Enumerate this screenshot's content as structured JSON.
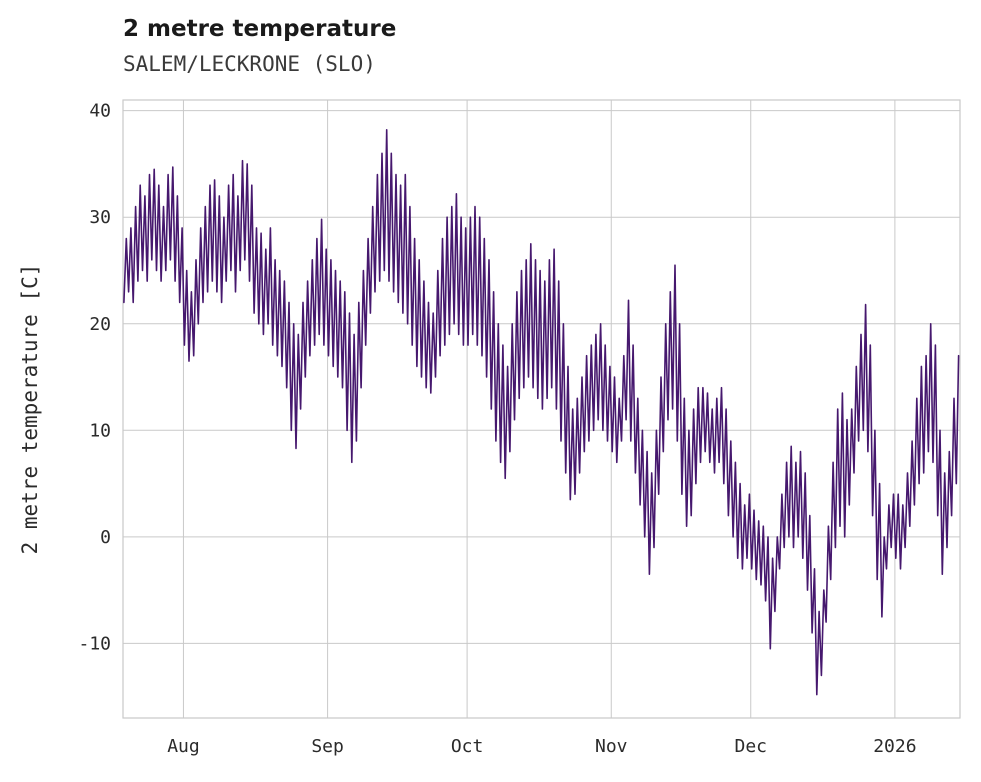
{
  "header": {
    "title": "2 metre temperature",
    "subtitle": "SALEM/LECKRONE (SLO)"
  },
  "chart_data": {
    "type": "line",
    "title": "2 metre temperature",
    "subtitle": "SALEM/LECKRONE (SLO)",
    "xlabel": "",
    "ylabel": "2 metre temperature [C]",
    "series_name": "2 metre temperature",
    "ylim": [
      -17,
      41
    ],
    "y_ticks": [
      -10,
      0,
      10,
      20,
      30,
      40
    ],
    "x_span_days": 180,
    "x_ticks": [
      {
        "label": "Aug",
        "day": 13
      },
      {
        "label": "Sep",
        "day": 44
      },
      {
        "label": "Oct",
        "day": 74
      },
      {
        "label": "Nov",
        "day": 105
      },
      {
        "label": "Dec",
        "day": 135
      },
      {
        "label": "2026",
        "day": 166
      }
    ],
    "grid": true,
    "line_color": "#46186E",
    "grid_color": "#c9c9c9",
    "tick_color": "#2b2b2b",
    "daily_min_max": [
      [
        22,
        28
      ],
      [
        23,
        29
      ],
      [
        22,
        31
      ],
      [
        24,
        33
      ],
      [
        25,
        32
      ],
      [
        24,
        34
      ],
      [
        26,
        34.5
      ],
      [
        25,
        33
      ],
      [
        24,
        31
      ],
      [
        25,
        34
      ],
      [
        26,
        34.7
      ],
      [
        24,
        32
      ],
      [
        22,
        29
      ],
      [
        18,
        25
      ],
      [
        16.5,
        23
      ],
      [
        17,
        26
      ],
      [
        20,
        29
      ],
      [
        22,
        31
      ],
      [
        23,
        33
      ],
      [
        24,
        33.5
      ],
      [
        23,
        32
      ],
      [
        22,
        30
      ],
      [
        24,
        33
      ],
      [
        25,
        34
      ],
      [
        23,
        32
      ],
      [
        25,
        35.3
      ],
      [
        26,
        35
      ],
      [
        24,
        33
      ],
      [
        21,
        29
      ],
      [
        20,
        28.5
      ],
      [
        19,
        27
      ],
      [
        20,
        29
      ],
      [
        18,
        26
      ],
      [
        17,
        25
      ],
      [
        16,
        24
      ],
      [
        14,
        22
      ],
      [
        10,
        20
      ],
      [
        8.3,
        19
      ],
      [
        12,
        22
      ],
      [
        15,
        24
      ],
      [
        17,
        26
      ],
      [
        18,
        28
      ],
      [
        19,
        29.8
      ],
      [
        18,
        27
      ],
      [
        17,
        26
      ],
      [
        16,
        25
      ],
      [
        15,
        24
      ],
      [
        14,
        23
      ],
      [
        10,
        21
      ],
      [
        7,
        19
      ],
      [
        9,
        22
      ],
      [
        14,
        25
      ],
      [
        18,
        28
      ],
      [
        21,
        31
      ],
      [
        23,
        34
      ],
      [
        24,
        36
      ],
      [
        25,
        38.2
      ],
      [
        24,
        36
      ],
      [
        23,
        34
      ],
      [
        22,
        33
      ],
      [
        21,
        34
      ],
      [
        20,
        31
      ],
      [
        18,
        28
      ],
      [
        16,
        26
      ],
      [
        15,
        24
      ],
      [
        14,
        22
      ],
      [
        13.5,
        21
      ],
      [
        15,
        25
      ],
      [
        17,
        28
      ],
      [
        18,
        30
      ],
      [
        19,
        31
      ],
      [
        20,
        32.2
      ],
      [
        19,
        30
      ],
      [
        18,
        29
      ],
      [
        18,
        30
      ],
      [
        19,
        31
      ],
      [
        18,
        30
      ],
      [
        17,
        28
      ],
      [
        15,
        26
      ],
      [
        12,
        23
      ],
      [
        9,
        20
      ],
      [
        7,
        18
      ],
      [
        5.5,
        16
      ],
      [
        8,
        20
      ],
      [
        11,
        23
      ],
      [
        13,
        25
      ],
      [
        14,
        26
      ],
      [
        15,
        27.5
      ],
      [
        14,
        26
      ],
      [
        13,
        25
      ],
      [
        12,
        24
      ],
      [
        13,
        26
      ],
      [
        14,
        27
      ],
      [
        12,
        24
      ],
      [
        9,
        20
      ],
      [
        6,
        16
      ],
      [
        3.5,
        12
      ],
      [
        4,
        13
      ],
      [
        6,
        15
      ],
      [
        8,
        17
      ],
      [
        9,
        18
      ],
      [
        10,
        19
      ],
      [
        11,
        20
      ],
      [
        10,
        18
      ],
      [
        9,
        16
      ],
      [
        8,
        15
      ],
      [
        7,
        13
      ],
      [
        9,
        17
      ],
      [
        11,
        22.2
      ],
      [
        9,
        18
      ],
      [
        6,
        13
      ],
      [
        3,
        10
      ],
      [
        0,
        8
      ],
      [
        -3.5,
        6
      ],
      [
        -1,
        10
      ],
      [
        4,
        15
      ],
      [
        8,
        20
      ],
      [
        11,
        23
      ],
      [
        12,
        25.5
      ],
      [
        9,
        20
      ],
      [
        4,
        13
      ],
      [
        1,
        10
      ],
      [
        2,
        12
      ],
      [
        5,
        14
      ],
      [
        7,
        14
      ],
      [
        8,
        13.5
      ],
      [
        7,
        12
      ],
      [
        6,
        13
      ],
      [
        7,
        14
      ],
      [
        5,
        12
      ],
      [
        2,
        9
      ],
      [
        0,
        7
      ],
      [
        -2,
        5
      ],
      [
        -3,
        3
      ],
      [
        -2,
        4
      ],
      [
        -3,
        2.5
      ],
      [
        -4,
        1.5
      ],
      [
        -4.5,
        1
      ],
      [
        -6,
        0
      ],
      [
        -10.5,
        -2
      ],
      [
        -7,
        0
      ],
      [
        -3,
        4
      ],
      [
        -1,
        7
      ],
      [
        0,
        8.5
      ],
      [
        -1,
        7
      ],
      [
        0,
        8
      ],
      [
        -2,
        6
      ],
      [
        -5,
        2
      ],
      [
        -9,
        -3
      ],
      [
        -14.8,
        -7
      ],
      [
        -13,
        -5
      ],
      [
        -8,
        1
      ],
      [
        -4,
        7
      ],
      [
        -1,
        12
      ],
      [
        1,
        13.5
      ],
      [
        0,
        11
      ],
      [
        3,
        12
      ],
      [
        6,
        16
      ],
      [
        9,
        19
      ],
      [
        10,
        21.8
      ],
      [
        8,
        18
      ],
      [
        2,
        10
      ],
      [
        -4,
        5
      ],
      [
        -7.5,
        0
      ],
      [
        -3,
        3
      ],
      [
        -1,
        4
      ],
      [
        -2,
        4
      ],
      [
        -3,
        3
      ],
      [
        -1,
        6
      ],
      [
        1,
        9
      ],
      [
        3,
        13
      ],
      [
        5,
        16
      ],
      [
        6,
        17
      ],
      [
        8,
        20
      ],
      [
        7,
        18
      ],
      [
        2,
        10
      ],
      [
        -3.5,
        6
      ],
      [
        -1,
        8
      ],
      [
        2,
        13
      ],
      [
        5,
        17
      ]
    ]
  }
}
